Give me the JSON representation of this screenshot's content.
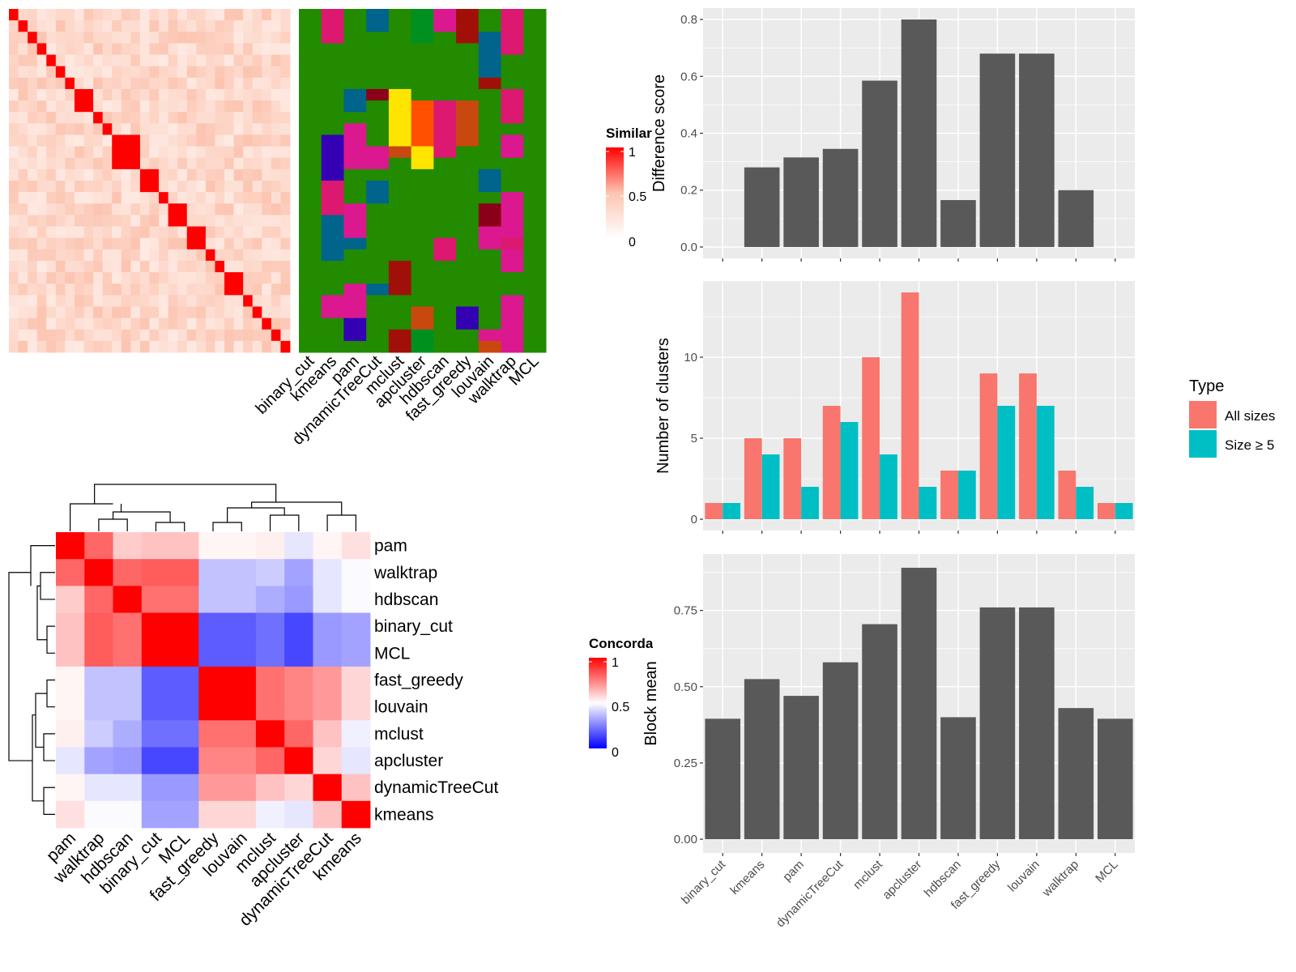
{
  "figure": {
    "similarity_legend_title": "Similarity",
    "similarity_legend_ticks": [
      "1",
      "0.5",
      "0"
    ],
    "concordance_legend_title": "Concordance",
    "concordance_legend_ticks": [
      "1",
      "0.5",
      "0"
    ],
    "type_legend_title": "Type"
  },
  "chart_data": [
    {
      "type": "heatmap",
      "name": "similarity-heatmap",
      "rows": 30,
      "blocks_along_diagonal": [
        1,
        1,
        1,
        1,
        1,
        1,
        1,
        2,
        1,
        1,
        3,
        2,
        1,
        2,
        2,
        1,
        1,
        2,
        1,
        1,
        1,
        1,
        1,
        1,
        1,
        2
      ],
      "colorscale": {
        "0": "#ffffff",
        "0.5": "#fcc4b0",
        "1": "#ff0000"
      },
      "legend": "Similarity"
    },
    {
      "type": "heatmap",
      "name": "cluster-membership-heatmap",
      "columns": [
        "binary_cut",
        "kmeans",
        "pam",
        "dynamicTreeCut",
        "mclust",
        "apcluster",
        "hdbscan",
        "fast_greedy",
        "louvain",
        "walktrap",
        "MCL"
      ],
      "cluster_palette": [
        "#228b00",
        "#dc1870",
        "#dc1890",
        "#3300b4",
        "#00648c",
        "#a01008",
        "#8b0018",
        "#c84810",
        "#ffe400",
        "#ff5000",
        "#009020"
      ]
    },
    {
      "type": "heatmap",
      "name": "concordance-heatmap",
      "rows": [
        "pam",
        "walktrap",
        "hdbscan",
        "binary_cut",
        "MCL",
        "fast_greedy",
        "louvain",
        "mclust",
        "apcluster",
        "dynamicTreeCut",
        "kmeans"
      ],
      "columns": [
        "pam",
        "walktrap",
        "hdbscan",
        "binary_cut",
        "MCL",
        "fast_greedy",
        "louvain",
        "mclust",
        "apcluster",
        "dynamicTreeCut",
        "kmeans"
      ],
      "values": [
        [
          1.0,
          0.8,
          0.6,
          0.62,
          0.62,
          0.52,
          0.52,
          0.53,
          0.45,
          0.52,
          0.56
        ],
        [
          0.8,
          1.0,
          0.8,
          0.82,
          0.82,
          0.38,
          0.38,
          0.4,
          0.32,
          0.45,
          0.49
        ],
        [
          0.6,
          0.8,
          1.0,
          0.78,
          0.78,
          0.38,
          0.38,
          0.34,
          0.3,
          0.45,
          0.49
        ],
        [
          0.62,
          0.82,
          0.78,
          1.0,
          1.0,
          0.18,
          0.18,
          0.22,
          0.14,
          0.3,
          0.32
        ],
        [
          0.62,
          0.82,
          0.78,
          1.0,
          1.0,
          0.18,
          0.18,
          0.22,
          0.14,
          0.3,
          0.32
        ],
        [
          0.52,
          0.38,
          0.38,
          0.18,
          0.18,
          1.0,
          1.0,
          0.78,
          0.74,
          0.7,
          0.58
        ],
        [
          0.52,
          0.38,
          0.38,
          0.18,
          0.18,
          1.0,
          1.0,
          0.78,
          0.74,
          0.7,
          0.58
        ],
        [
          0.53,
          0.4,
          0.34,
          0.22,
          0.22,
          0.78,
          0.78,
          1.0,
          0.8,
          0.62,
          0.47
        ],
        [
          0.45,
          0.32,
          0.3,
          0.14,
          0.14,
          0.74,
          0.74,
          0.8,
          1.0,
          0.58,
          0.45
        ],
        [
          0.52,
          0.45,
          0.45,
          0.3,
          0.3,
          0.7,
          0.7,
          0.62,
          0.58,
          1.0,
          0.62
        ],
        [
          0.56,
          0.49,
          0.49,
          0.32,
          0.32,
          0.58,
          0.58,
          0.47,
          0.45,
          0.62,
          1.0
        ]
      ],
      "legend": "Concordance",
      "colorscale": {
        "0": "#0000ff",
        "0.5": "#ffffff",
        "1": "#ff0000"
      }
    },
    {
      "type": "bar",
      "name": "difference-score",
      "categories": [
        "binary_cut",
        "kmeans",
        "pam",
        "dynamicTreeCut",
        "mclust",
        "apcluster",
        "hdbscan",
        "fast_greedy",
        "louvain",
        "walktrap",
        "MCL"
      ],
      "values": [
        0,
        0.28,
        0.315,
        0.345,
        0.585,
        0.8,
        0.165,
        0.68,
        0.68,
        0.2,
        0
      ],
      "ylabel": "Difference score",
      "yticks": [
        "0.0",
        "0.2",
        "0.4",
        "0.6",
        "0.8"
      ],
      "ylim": [
        -0.04,
        0.84
      ],
      "color": "#595959"
    },
    {
      "type": "bar",
      "name": "number-of-clusters",
      "categories": [
        "binary_cut",
        "kmeans",
        "pam",
        "dynamicTreeCut",
        "mclust",
        "apcluster",
        "hdbscan",
        "fast_greedy",
        "louvain",
        "walktrap",
        "MCL"
      ],
      "series": [
        {
          "name": "All sizes",
          "color": "#f8766d",
          "values": [
            1,
            5,
            5,
            7,
            10,
            14,
            3,
            9,
            9,
            3,
            1
          ]
        },
        {
          "name": "Size ≥ 5",
          "color": "#00bfc4",
          "values": [
            1,
            4,
            2,
            6,
            4,
            2,
            3,
            7,
            7,
            2,
            1
          ]
        }
      ],
      "ylabel": "Number of clusters",
      "yticks": [
        "0",
        "5",
        "10"
      ],
      "ylim": [
        -0.7,
        14.7
      ],
      "legend_title": "Type",
      "legend_position": "right"
    },
    {
      "type": "bar",
      "name": "block-mean",
      "categories": [
        "binary_cut",
        "kmeans",
        "pam",
        "dynamicTreeCut",
        "mclust",
        "apcluster",
        "hdbscan",
        "fast_greedy",
        "louvain",
        "walktrap",
        "MCL"
      ],
      "values": [
        0.395,
        0.525,
        0.47,
        0.58,
        0.705,
        0.89,
        0.4,
        0.76,
        0.76,
        0.43,
        0.395
      ],
      "ylabel": "Block mean",
      "yticks": [
        "0.00",
        "0.25",
        "0.50",
        "0.75"
      ],
      "ylim": [
        -0.045,
        0.935
      ],
      "color": "#595959"
    }
  ]
}
